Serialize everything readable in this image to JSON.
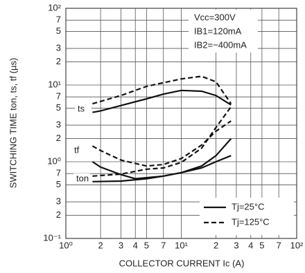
{
  "chart_data": {
    "type": "line",
    "y_label": "SWITCHING TIME   ton, ts, tf (µs)",
    "x_label": "COLLECTOR CURRENT   Ic (A)",
    "log_x": true,
    "log_y": true,
    "grid": true,
    "xlim": [
      1,
      100
    ],
    "ylim": [
      0.1,
      100
    ],
    "xticks": [
      {
        "value": 1,
        "label": "10⁰"
      },
      2,
      3,
      4,
      5,
      7,
      {
        "value": 10,
        "label": "10¹"
      },
      {
        "value": 20,
        "label": "2"
      },
      {
        "value": 30,
        "label": "3"
      },
      {
        "value": 40,
        "label": "4"
      },
      {
        "value": 50,
        "label": "5"
      },
      {
        "value": 70,
        "label": "7"
      },
      {
        "value": 100,
        "label": "10²"
      }
    ],
    "yticks": [
      {
        "value": 100,
        "label": "10²"
      },
      {
        "value": 70,
        "label": "7"
      },
      {
        "value": 50,
        "label": "5"
      },
      {
        "value": 30,
        "label": "3"
      },
      {
        "value": 20,
        "label": "2"
      },
      {
        "value": 10,
        "label": "10¹"
      },
      7,
      5,
      3,
      2,
      {
        "value": 1,
        "label": "10⁰"
      },
      {
        "value": 0.7,
        "label": "7"
      },
      {
        "value": 0.5,
        "label": "5"
      },
      {
        "value": 0.3,
        "label": "3"
      },
      {
        "value": 0.2,
        "label": "2"
      },
      {
        "value": 0.1,
        "label": "10⁻¹"
      }
    ],
    "conditions": [
      "Vcc=300V",
      "IB1=120mA",
      "IB2=−400mA"
    ],
    "legend": [
      {
        "label": "Tj=25°C",
        "style": "solid"
      },
      {
        "label": "Tj=125°C",
        "style": "dashed"
      }
    ],
    "color": "#111111",
    "curves": [
      {
        "label": "ts",
        "series": [
          {
            "style": "solid",
            "x": [
              1.7,
              2,
              3,
              5,
              7,
              10,
              15,
              20,
              27
            ],
            "values": [
              4.4,
              4.6,
              5.4,
              6.6,
              7.6,
              8.5,
              8.3,
              7.3,
              5.5
            ]
          },
          {
            "style": "dashed",
            "x": [
              1.7,
              3,
              5,
              7,
              10,
              15,
              20,
              27
            ],
            "values": [
              5.7,
              7.3,
              9.6,
              10.7,
              12,
              13,
              11,
              5.7
            ]
          }
        ]
      },
      {
        "label": "tf",
        "series": [
          {
            "style": "solid",
            "x": [
              1.7,
              2,
              3,
              4,
              7,
              10,
              15,
              20,
              27
            ],
            "values": [
              1.0,
              0.85,
              0.68,
              0.6,
              0.65,
              0.72,
              0.88,
              1.2,
              2.0
            ]
          },
          {
            "style": "dashed",
            "x": [
              1.7,
              2,
              3,
              5,
              7,
              10,
              15,
              20,
              27
            ],
            "values": [
              1.6,
              1.4,
              1.05,
              0.88,
              0.92,
              1.1,
              1.65,
              2.5,
              3.4
            ]
          }
        ]
      },
      {
        "label": "ton",
        "series": [
          {
            "style": "solid",
            "x": [
              1.7,
              3,
              5,
              7,
              10,
              15,
              20,
              27
            ],
            "values": [
              0.55,
              0.56,
              0.6,
              0.65,
              0.72,
              0.83,
              1.0,
              1.2
            ]
          },
          {
            "style": "dashed",
            "x": [
              1.7,
              3,
              5,
              7,
              10,
              15,
              20,
              27
            ],
            "values": [
              0.65,
              0.69,
              0.8,
              0.83,
              0.98,
              1.5,
              2.8,
              5.2
            ]
          }
        ]
      }
    ]
  }
}
